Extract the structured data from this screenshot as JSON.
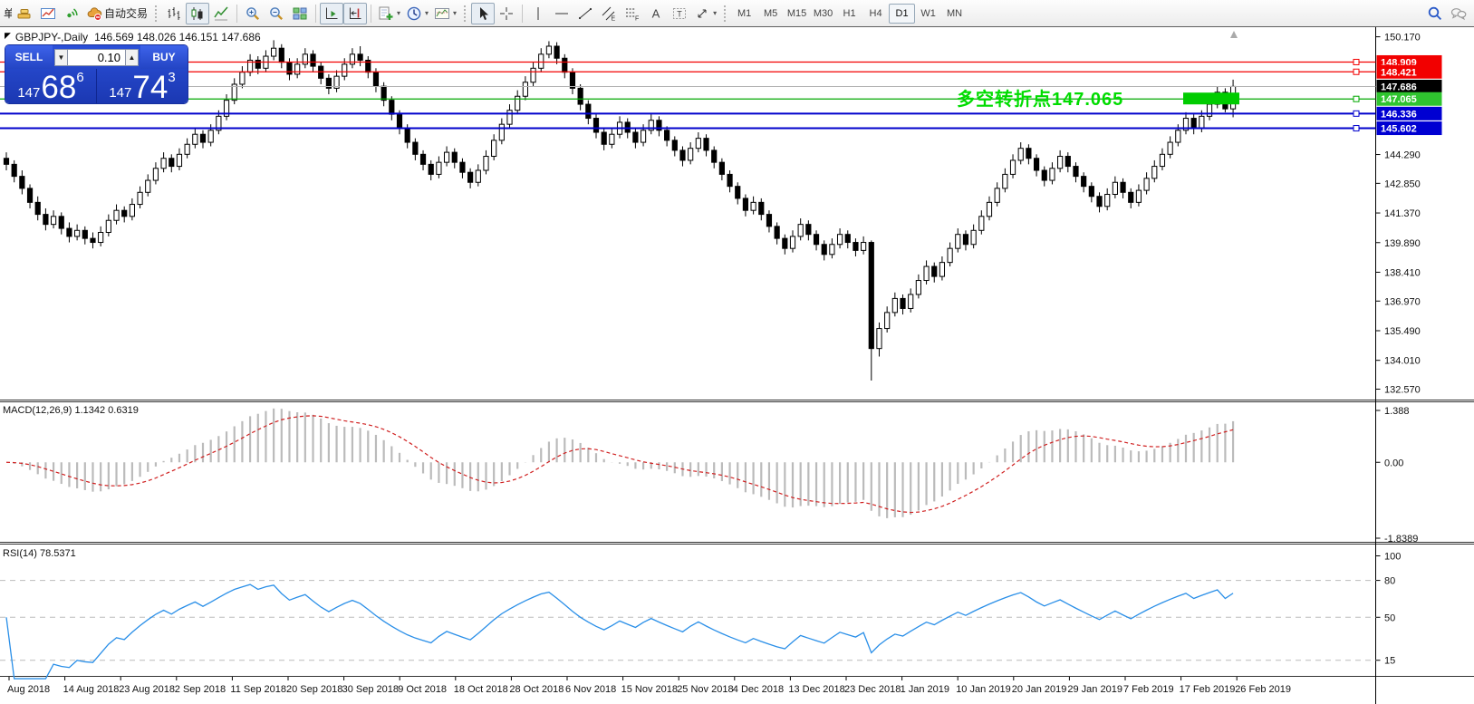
{
  "toolbar": {
    "autotrading_label": "自动交易",
    "new_order_label": "单",
    "groups": [
      {
        "items": [
          {
            "name": "new-order-button",
            "icon": "neworder",
            "clipped": true,
            "use_label": true
          },
          {
            "name": "gold-chart-icon",
            "icon": "gold"
          },
          {
            "name": "market-window-icon",
            "icon": "chartwin"
          },
          {
            "name": "signals-icon",
            "icon": "signal"
          },
          {
            "name": "autotrading-button",
            "icon": "autotrade",
            "autolabel": true
          }
        ]
      },
      {
        "grip": true,
        "items": [
          {
            "name": "bar-chart-type-button",
            "icon": "bars"
          },
          {
            "name": "candlestick-type-button",
            "icon": "candles",
            "pressed": true
          },
          {
            "name": "line-chart-type-button",
            "icon": "linechart"
          }
        ]
      },
      {
        "sep": true,
        "items": [
          {
            "name": "zoom-in-button",
            "icon": "zoomin"
          },
          {
            "name": "zoom-out-button",
            "icon": "zoomout"
          },
          {
            "name": "tile-windows-button",
            "icon": "tile"
          }
        ]
      },
      {
        "sep": true,
        "items": [
          {
            "name": "auto-scroll-button",
            "icon": "autoscroll",
            "pressed": true
          },
          {
            "name": "chart-shift-button",
            "icon": "chartshift",
            "pressed": true
          }
        ]
      },
      {
        "sep": true,
        "items": [
          {
            "name": "indicators-button",
            "icon": "indicators",
            "dropdown": true
          },
          {
            "name": "periods-button",
            "icon": "periods",
            "dropdown": true
          },
          {
            "name": "templates-button",
            "icon": "templates",
            "dropdown": true
          }
        ]
      },
      {
        "grip": true,
        "items": [
          {
            "name": "cursor-button",
            "icon": "cursor",
            "pressed": true
          },
          {
            "name": "crosshair-button",
            "icon": "crosshair"
          }
        ]
      },
      {
        "sep": true,
        "items": [
          {
            "name": "vertical-line-button",
            "icon": "vline"
          },
          {
            "name": "horizontal-line-button",
            "icon": "hline"
          },
          {
            "name": "trendline-button",
            "icon": "trendline"
          },
          {
            "name": "equidistant-channel-button",
            "icon": "channel"
          },
          {
            "name": "fibonacci-button",
            "icon": "fibo"
          },
          {
            "name": "text-button",
            "icon": "textA"
          },
          {
            "name": "text-label-button",
            "icon": "labelT"
          },
          {
            "name": "arrows-button",
            "icon": "arrows",
            "dropdown": true
          }
        ]
      },
      {
        "grip": true,
        "timeframes": true
      },
      {
        "spacer": true
      },
      {
        "items": [
          {
            "name": "search-button",
            "icon": "search"
          },
          {
            "name": "chat-button",
            "icon": "chat"
          }
        ]
      }
    ],
    "timeframes": [
      {
        "label": "M1"
      },
      {
        "label": "M5"
      },
      {
        "label": "M15"
      },
      {
        "label": "M30"
      },
      {
        "label": "H1"
      },
      {
        "label": "H4"
      },
      {
        "label": "D1",
        "pressed": true
      },
      {
        "label": "W1"
      },
      {
        "label": "MN"
      }
    ]
  },
  "chart": {
    "menu_icon": "◤",
    "symbol_period": "GBPJPY-,Daily",
    "ohlc": "146.569 148.026 146.151 147.686"
  },
  "trade_panel": {
    "sell_label": "SELL",
    "buy_label": "BUY",
    "lot": "0.10",
    "lot_down_icon": "▼",
    "lot_up_icon": "▲",
    "sell_price": {
      "prefix": "147",
      "big": "68",
      "sup": "6"
    },
    "buy_price": {
      "prefix": "147",
      "big": "74",
      "sup": "3"
    }
  },
  "annotation": {
    "text": "多空转折点147.065",
    "color": "#00dc00"
  },
  "indicators": {
    "macd_label": "MACD(12,26,9) 1.1342 0.6319",
    "rsi_label": "RSI(14) 78.5371"
  },
  "levels": [
    {
      "label": "148.909",
      "value": 148.909,
      "line": "#f20000",
      "bg": "#f20000",
      "w": 1.3,
      "handle": true
    },
    {
      "label": "148.421",
      "value": 148.421,
      "line": "#f20000",
      "bg": "#f20000",
      "w": 1.3,
      "handle": true
    },
    {
      "label": "147.686",
      "value": 147.686,
      "line": "#b2b2b2",
      "bg": "#000000",
      "w": 1,
      "handle": false
    },
    {
      "label": "147.065",
      "value": 147.065,
      "line": "#00a800",
      "bg": "#2fc42f",
      "w": 1.3,
      "handle": true
    },
    {
      "label": "146.336",
      "value": 146.336,
      "line": "#0000cc",
      "bg": "#0000d2",
      "w": 2,
      "handle": true
    },
    {
      "label": "145.602",
      "value": 145.602,
      "line": "#0000cc",
      "bg": "#0000d2",
      "w": 2,
      "handle": true
    }
  ],
  "axes": {
    "price_ticks": [
      "150.170",
      "144.290",
      "142.850",
      "141.370",
      "139.890",
      "138.410",
      "136.970",
      "135.490",
      "134.010",
      "132.570"
    ],
    "macd_ticks": [
      "1.388",
      "0.00",
      "-1.8389"
    ],
    "rsi_ticks": [
      {
        "label": "100",
        "value": 100
      },
      {
        "label": "80",
        "value": 80,
        "grid": true
      },
      {
        "label": "50",
        "value": 50,
        "grid": true
      },
      {
        "label": "15",
        "value": 15,
        "grid": true
      }
    ],
    "dates": [
      "Aug 2018",
      "14 Aug 2018",
      "23 Aug 2018",
      "2 Sep 2018",
      "11 Sep 2018",
      "20 Sep 2018",
      "30 Sep 2018",
      "9 Oct 2018",
      "18 Oct 2018",
      "28 Oct 2018",
      "6 Nov 2018",
      "15 Nov 2018",
      "25 Nov 2018",
      "4 Dec 2018",
      "13 Dec 2018",
      "23 Dec 2018",
      "1 Jan 2019",
      "10 Jan 2019",
      "20 Jan 2019",
      "29 Jan 2019",
      "7 Feb 2019",
      "17 Feb 2019",
      "26 Feb 2019"
    ]
  },
  "colors": {
    "bull_fill": "#ffffff",
    "bear_fill": "#000000",
    "candle_stroke": "#000000",
    "macd_hist": "#bbbbbb",
    "macd_signal": "#d02020",
    "rsi_line": "#2a8fe8",
    "grid_dash": "#bcbcbc",
    "axis_text": "#111111",
    "highlight_green": "#00cc00"
  },
  "chart_data": {
    "type": "candlestick",
    "symbol": "GBPJPY-",
    "timeframe": "Daily",
    "today_ohlc": {
      "open": 146.569,
      "high": 148.026,
      "low": 146.151,
      "close": 147.686
    },
    "y_axis_range": [
      132.05,
      150.65
    ],
    "macd": {
      "params": [
        12,
        26,
        9
      ],
      "values": [
        1.1342,
        0.6319
      ],
      "scale": [
        -1.8389,
        1.388
      ]
    },
    "rsi": {
      "params": [
        14
      ],
      "value": 78.5371,
      "scale_ticks": [
        100,
        80,
        50,
        15
      ]
    },
    "candles": [
      [
        144.1,
        144.4,
        143.5,
        143.8
      ],
      [
        143.8,
        144,
        142.9,
        143.2
      ],
      [
        143.2,
        143.5,
        142.3,
        142.6
      ],
      [
        142.6,
        142.8,
        141.6,
        141.9
      ],
      [
        141.9,
        142.2,
        141,
        141.3
      ],
      [
        141.3,
        141.6,
        140.5,
        140.8
      ],
      [
        140.8,
        141.5,
        140.6,
        141.2
      ],
      [
        141.2,
        141.4,
        140.3,
        140.6
      ],
      [
        140.6,
        140.9,
        139.9,
        140.2
      ],
      [
        140.2,
        140.8,
        140,
        140.5
      ],
      [
        140.5,
        140.7,
        139.8,
        140.1
      ],
      [
        140.1,
        140.4,
        139.6,
        139.9
      ],
      [
        139.9,
        140.7,
        139.7,
        140.4
      ],
      [
        140.4,
        141.3,
        140.2,
        141
      ],
      [
        141,
        141.8,
        140.8,
        141.5
      ],
      [
        141.5,
        141.7,
        140.9,
        141.2
      ],
      [
        141.2,
        142.1,
        141,
        141.8
      ],
      [
        141.8,
        142.7,
        141.6,
        142.4
      ],
      [
        142.4,
        143.3,
        142.2,
        143
      ],
      [
        143,
        143.9,
        142.8,
        143.6
      ],
      [
        143.6,
        144.4,
        143.4,
        144.1
      ],
      [
        144.1,
        144.3,
        143.4,
        143.7
      ],
      [
        143.7,
        144.6,
        143.5,
        144.3
      ],
      [
        144.3,
        145.1,
        144.1,
        144.8
      ],
      [
        144.8,
        145.6,
        144.6,
        145.3
      ],
      [
        145.3,
        145.5,
        144.6,
        144.9
      ],
      [
        144.9,
        145.8,
        144.7,
        145.5
      ],
      [
        145.5,
        146.5,
        145.3,
        146.2
      ],
      [
        146.2,
        147.3,
        146,
        147
      ],
      [
        147,
        148.1,
        146.8,
        147.8
      ],
      [
        147.8,
        148.7,
        147.6,
        148.4
      ],
      [
        148.4,
        149.3,
        148.2,
        149
      ],
      [
        149,
        149.2,
        148.3,
        148.6
      ],
      [
        148.6,
        149.5,
        148.4,
        149.2
      ],
      [
        149.2,
        150,
        149,
        149.6
      ],
      [
        149.6,
        149.8,
        148.6,
        148.9
      ],
      [
        148.9,
        149.1,
        148,
        148.3
      ],
      [
        148.3,
        149.1,
        148.1,
        148.8
      ],
      [
        148.8,
        149.6,
        148.6,
        149.3
      ],
      [
        149.3,
        149.5,
        148.4,
        148.7
      ],
      [
        148.7,
        148.9,
        147.8,
        148.1
      ],
      [
        148.1,
        148.3,
        147.3,
        147.6
      ],
      [
        147.6,
        148.5,
        147.4,
        148.2
      ],
      [
        148.2,
        149.1,
        148,
        148.8
      ],
      [
        148.8,
        149.6,
        148.6,
        149.3
      ],
      [
        149.3,
        149.7,
        148.7,
        149
      ],
      [
        149,
        149.2,
        148.1,
        148.4
      ],
      [
        148.4,
        148.6,
        147.4,
        147.7
      ],
      [
        147.7,
        147.9,
        146.7,
        147
      ],
      [
        147,
        147.2,
        146,
        146.3
      ],
      [
        146.3,
        146.5,
        145.3,
        145.6
      ],
      [
        145.6,
        145.8,
        144.6,
        144.9
      ],
      [
        144.9,
        145.1,
        144,
        144.3
      ],
      [
        144.3,
        144.5,
        143.5,
        143.8
      ],
      [
        143.8,
        144,
        143,
        143.3
      ],
      [
        143.3,
        144.2,
        143.1,
        143.9
      ],
      [
        143.9,
        144.7,
        143.7,
        144.4
      ],
      [
        144.4,
        144.6,
        143.6,
        143.9
      ],
      [
        143.9,
        144.1,
        143.1,
        143.4
      ],
      [
        143.4,
        143.6,
        142.6,
        142.9
      ],
      [
        142.9,
        143.8,
        142.7,
        143.5
      ],
      [
        143.5,
        144.5,
        143.3,
        144.2
      ],
      [
        144.2,
        145.3,
        144,
        145
      ],
      [
        145,
        146.1,
        144.8,
        145.8
      ],
      [
        145.8,
        146.8,
        145.6,
        146.5
      ],
      [
        146.5,
        147.5,
        146.3,
        147.2
      ],
      [
        147.2,
        148.2,
        147,
        147.9
      ],
      [
        147.9,
        148.9,
        147.7,
        148.6
      ],
      [
        148.6,
        149.6,
        148.4,
        149.3
      ],
      [
        149.3,
        149.95,
        149.1,
        149.7
      ],
      [
        149.7,
        149.9,
        148.8,
        149.1
      ],
      [
        149.1,
        149.3,
        148.1,
        148.4
      ],
      [
        148.4,
        148.6,
        147.3,
        147.6
      ],
      [
        147.6,
        147.8,
        146.5,
        146.8
      ],
      [
        146.8,
        147,
        145.8,
        146.1
      ],
      [
        146.1,
        146.3,
        145.1,
        145.4
      ],
      [
        145.4,
        145.6,
        144.5,
        144.8
      ],
      [
        144.8,
        145.6,
        144.6,
        145.3
      ],
      [
        145.3,
        146.2,
        145.1,
        145.9
      ],
      [
        145.9,
        146.1,
        145.1,
        145.4
      ],
      [
        145.4,
        145.6,
        144.6,
        144.9
      ],
      [
        144.9,
        145.8,
        144.7,
        145.5
      ],
      [
        145.5,
        146.3,
        145.3,
        146
      ],
      [
        146,
        146.2,
        145.2,
        145.5
      ],
      [
        145.5,
        145.7,
        144.7,
        145
      ],
      [
        145,
        145.2,
        144.2,
        144.5
      ],
      [
        144.5,
        144.7,
        143.7,
        144
      ],
      [
        144,
        144.9,
        143.8,
        144.6
      ],
      [
        144.6,
        145.4,
        144.4,
        145.1
      ],
      [
        145.1,
        145.3,
        144.2,
        144.5
      ],
      [
        144.5,
        144.7,
        143.6,
        143.9
      ],
      [
        143.9,
        144.1,
        143,
        143.3
      ],
      [
        143.3,
        143.5,
        142.4,
        142.7
      ],
      [
        142.7,
        142.9,
        141.8,
        142.1
      ],
      [
        142.1,
        142.3,
        141.2,
        141.5
      ],
      [
        141.5,
        142.2,
        141.3,
        141.9
      ],
      [
        141.9,
        142.1,
        141,
        141.3
      ],
      [
        141.3,
        141.5,
        140.4,
        140.7
      ],
      [
        140.7,
        140.9,
        139.8,
        140.1
      ],
      [
        140.1,
        140.3,
        139.3,
        139.6
      ],
      [
        139.6,
        140.5,
        139.4,
        140.2
      ],
      [
        140.2,
        141.1,
        140,
        140.8
      ],
      [
        140.8,
        141,
        140,
        140.3
      ],
      [
        140.3,
        140.5,
        139.5,
        139.8
      ],
      [
        139.8,
        140,
        139,
        139.3
      ],
      [
        139.3,
        140.1,
        139.1,
        139.8
      ],
      [
        139.8,
        140.6,
        139.6,
        140.3
      ],
      [
        140.3,
        140.5,
        139.6,
        139.9
      ],
      [
        139.9,
        140.1,
        139.2,
        139.5
      ],
      [
        139.5,
        140.2,
        139.3,
        139.9
      ],
      [
        139.9,
        140,
        133,
        134.6
      ],
      [
        134.6,
        135.9,
        134.2,
        135.6
      ],
      [
        135.6,
        136.7,
        135.4,
        136.4
      ],
      [
        136.4,
        137.4,
        136.2,
        137.1
      ],
      [
        137.1,
        137.3,
        136.3,
        136.6
      ],
      [
        136.6,
        137.6,
        136.4,
        137.3
      ],
      [
        137.3,
        138.3,
        137.1,
        138
      ],
      [
        138,
        139,
        137.8,
        138.7
      ],
      [
        138.7,
        138.9,
        137.9,
        138.2
      ],
      [
        138.2,
        139.2,
        138,
        138.9
      ],
      [
        138.9,
        139.9,
        138.7,
        139.6
      ],
      [
        139.6,
        140.6,
        139.4,
        140.3
      ],
      [
        140.3,
        140.5,
        139.5,
        139.8
      ],
      [
        139.8,
        140.8,
        139.6,
        140.5
      ],
      [
        140.5,
        141.5,
        140.3,
        141.2
      ],
      [
        141.2,
        142.2,
        141,
        141.9
      ],
      [
        141.9,
        142.9,
        141.7,
        142.6
      ],
      [
        142.6,
        143.6,
        142.4,
        143.3
      ],
      [
        143.3,
        144.3,
        143.1,
        144
      ],
      [
        144,
        144.9,
        143.8,
        144.6
      ],
      [
        144.6,
        144.8,
        143.8,
        144.1
      ],
      [
        144.1,
        144.3,
        143.2,
        143.5
      ],
      [
        143.5,
        143.7,
        142.7,
        143
      ],
      [
        143,
        143.9,
        142.8,
        143.6
      ],
      [
        143.6,
        144.5,
        143.4,
        144.2
      ],
      [
        144.2,
        144.4,
        143.4,
        143.7
      ],
      [
        143.7,
        143.9,
        142.9,
        143.2
      ],
      [
        143.2,
        143.4,
        142.4,
        142.7
      ],
      [
        142.7,
        142.9,
        141.9,
        142.2
      ],
      [
        142.2,
        142.4,
        141.4,
        141.7
      ],
      [
        141.7,
        142.6,
        141.5,
        142.3
      ],
      [
        142.3,
        143.2,
        142.1,
        142.9
      ],
      [
        142.9,
        143.1,
        142.1,
        142.4
      ],
      [
        142.4,
        142.6,
        141.6,
        141.9
      ],
      [
        141.9,
        142.8,
        141.7,
        142.5
      ],
      [
        142.5,
        143.4,
        142.3,
        143.1
      ],
      [
        143.1,
        144,
        142.9,
        143.7
      ],
      [
        143.7,
        144.6,
        143.5,
        144.3
      ],
      [
        144.3,
        145.2,
        144.1,
        144.9
      ],
      [
        144.9,
        145.8,
        144.7,
        145.5
      ],
      [
        145.5,
        146.4,
        145.3,
        146.1
      ],
      [
        146.1,
        146.3,
        145.3,
        145.6
      ],
      [
        145.6,
        146.5,
        145.4,
        146.2
      ],
      [
        146.2,
        147.1,
        146,
        146.8
      ],
      [
        146.8,
        147.7,
        146.6,
        147.4
      ],
      [
        147.4,
        147.6,
        146.4,
        146.57
      ],
      [
        146.57,
        148.03,
        146.15,
        147.69
      ]
    ]
  }
}
